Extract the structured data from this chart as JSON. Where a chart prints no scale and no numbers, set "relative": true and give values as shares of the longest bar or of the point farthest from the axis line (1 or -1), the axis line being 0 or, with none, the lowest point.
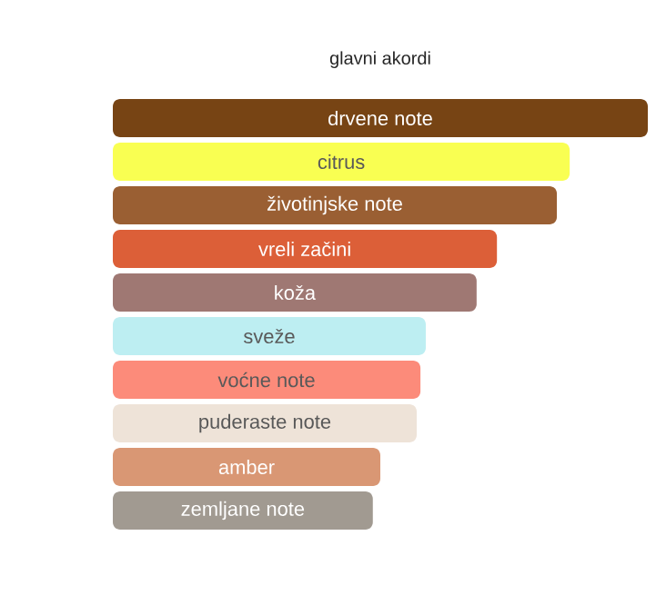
{
  "chart_data": {
    "type": "bar",
    "orientation": "horizontal",
    "relative": true,
    "title": "glavni akordi",
    "categories": [
      "drvene note",
      "citrus",
      "životinjske note",
      "vreli začini",
      "koža",
      "sveže",
      "voćne note",
      "puderaste note",
      "amber",
      "zemljane note"
    ],
    "values": [
      1,
      0.854,
      0.83,
      0.718,
      0.68,
      0.585,
      0.575,
      0.568,
      0.5,
      0.486
    ],
    "colors": [
      "#774414",
      "#f9ff52",
      "#9a5f33",
      "#dc5f38",
      "#9f7873",
      "#bdeef2",
      "#fc8b7a",
      "#eee3d8",
      "#d99774",
      "#a19a91"
    ]
  }
}
